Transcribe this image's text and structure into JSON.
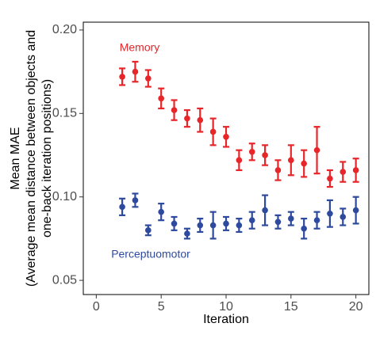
{
  "chart_data": {
    "type": "errorbar",
    "x_label": "Iteration",
    "y_label": [
      "Mean MAE",
      "(Average mean distance between objects and",
      "one-back iteration positions)"
    ],
    "x": [
      2,
      3,
      4,
      5,
      6,
      7,
      8,
      9,
      10,
      11,
      12,
      13,
      14,
      15,
      16,
      17,
      18,
      19,
      20
    ],
    "series": [
      {
        "name": "Memory",
        "color": "#e8262a",
        "values": [
          0.172,
          0.175,
          0.171,
          0.159,
          0.152,
          0.147,
          0.146,
          0.139,
          0.136,
          0.122,
          0.127,
          0.125,
          0.116,
          0.122,
          0.12,
          0.128,
          0.111,
          0.115,
          0.116
        ],
        "errors": [
          0.005,
          0.006,
          0.005,
          0.006,
          0.006,
          0.005,
          0.007,
          0.008,
          0.006,
          0.006,
          0.005,
          0.006,
          0.006,
          0.009,
          0.008,
          0.014,
          0.005,
          0.006,
          0.007
        ]
      },
      {
        "name": "Perceptuomotor",
        "color": "#2e4a9e",
        "values": [
          0.094,
          0.098,
          0.08,
          0.091,
          0.084,
          0.078,
          0.083,
          0.083,
          0.084,
          0.083,
          0.086,
          0.092,
          0.085,
          0.087,
          0.081,
          0.086,
          0.09,
          0.088,
          0.092
        ],
        "errors": [
          0.005,
          0.004,
          0.003,
          0.005,
          0.004,
          0.003,
          0.004,
          0.008,
          0.004,
          0.004,
          0.005,
          0.009,
          0.004,
          0.004,
          0.006,
          0.005,
          0.008,
          0.005,
          0.008
        ]
      }
    ],
    "xlim": [
      -1,
      21
    ],
    "xticks": [
      0,
      5,
      10,
      15,
      20
    ],
    "ylim": [
      0.0415,
      0.2047
    ],
    "yticks": [
      {
        "value": 0.05,
        "label": "0.05"
      },
      {
        "value": 0.1,
        "label": "0.10"
      },
      {
        "value": 0.15,
        "label": "0.15"
      },
      {
        "value": 0.2,
        "label": "0.20"
      }
    ]
  }
}
